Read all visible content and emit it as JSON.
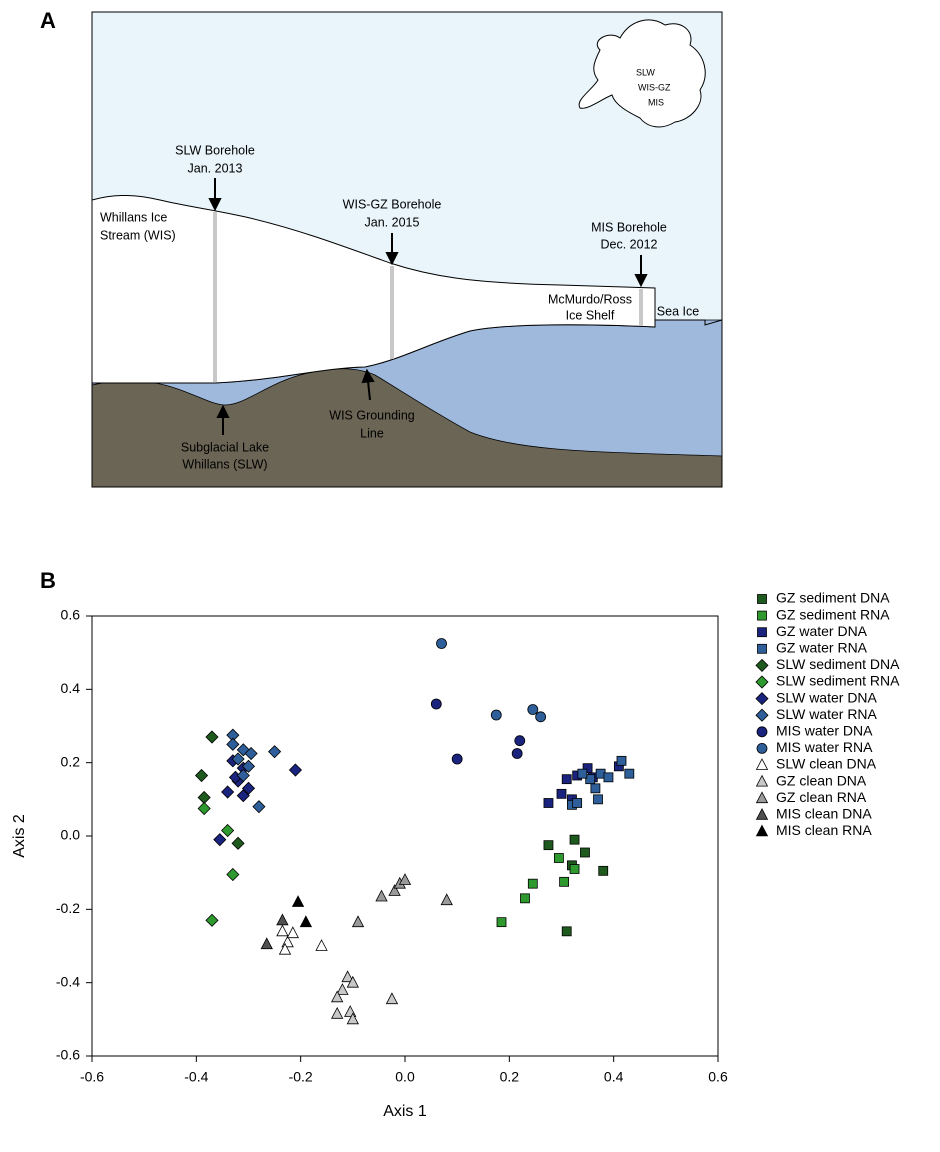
{
  "diagram": {
    "panel": "A",
    "slw_borehole": [
      "SLW Borehole",
      "Jan. 2013"
    ],
    "wis": [
      "Whillans Ice",
      "Stream (WIS)"
    ],
    "gz_borehole": [
      "WIS-GZ Borehole",
      "Jan. 2015"
    ],
    "mis_borehole": [
      "MIS Borehole",
      "Dec. 2012"
    ],
    "shelf": [
      "McMurdo/Ross",
      "Ice Shelf"
    ],
    "sea_ice": [
      "Sea Ice"
    ],
    "lake": [
      "Subglacial Lake",
      "Whillans (SLW)"
    ],
    "grounding": [
      "WIS Grounding",
      "Line"
    ],
    "map_labels": [
      "SLW",
      "WIS-GZ",
      "MIS"
    ]
  },
  "chart_data": {
    "type": "scatter",
    "panel": "B",
    "x_label": "Axis 1",
    "y_label": "Axis 2",
    "xlim": [
      -0.6,
      0.6
    ],
    "ylim": [
      -0.6,
      0.6
    ],
    "xticks": [
      -0.6,
      -0.4,
      -0.2,
      {
        "value": 0,
        "label": "0.0"
      },
      0.2,
      0.4,
      0.6
    ],
    "yticks": [
      -0.6,
      -0.4,
      -0.2,
      {
        "value": 0,
        "label": "0.0"
      },
      0.2,
      0.4,
      0.6
    ],
    "series": [
      {
        "name": "GZ sediment DNA",
        "color": "#1e5a1e",
        "marker": "square",
        "x": [
          0.325,
          0.345,
          0.275,
          0.38,
          0.31,
          0.32
        ],
        "y": [
          -0.01,
          -0.045,
          -0.025,
          -0.095,
          -0.26,
          -0.08
        ]
      },
      {
        "name": "GZ sediment RNA",
        "color": "#2e9a2e",
        "marker": "square",
        "x": [
          0.295,
          0.305,
          0.245,
          0.23,
          0.185,
          0.325
        ],
        "y": [
          -0.06,
          -0.125,
          -0.13,
          -0.17,
          -0.235,
          -0.09
        ]
      },
      {
        "name": "GZ water DNA",
        "color": "#1a237e",
        "marker": "square",
        "x": [
          0.275,
          0.31,
          0.33,
          0.35,
          0.36,
          0.41,
          0.3,
          0.32
        ],
        "y": [
          0.09,
          0.155,
          0.165,
          0.185,
          0.16,
          0.19,
          0.115,
          0.1
        ]
      },
      {
        "name": "GZ water RNA",
        "color": "#2e5f9a",
        "marker": "square",
        "x": [
          0.415,
          0.43,
          0.375,
          0.365,
          0.37,
          0.32,
          0.33,
          0.39,
          0.355,
          0.34
        ],
        "y": [
          0.205,
          0.17,
          0.17,
          0.13,
          0.1,
          0.085,
          0.09,
          0.16,
          0.155,
          0.17
        ]
      },
      {
        "name": "SLW sediment DNA",
        "color": "#1e5a1e",
        "marker": "diamond",
        "x": [
          -0.37,
          -0.39,
          -0.385,
          -0.32
        ],
        "y": [
          0.27,
          0.165,
          0.105,
          -0.02
        ]
      },
      {
        "name": "SLW sediment RNA",
        "color": "#2e9a2e",
        "marker": "diamond",
        "x": [
          -0.385,
          -0.34,
          -0.33,
          -0.37
        ],
        "y": [
          0.075,
          0.015,
          -0.105,
          -0.23
        ]
      },
      {
        "name": "SLW water DNA",
        "color": "#1a237e",
        "marker": "diamond",
        "x": [
          -0.33,
          -0.31,
          -0.32,
          -0.3,
          -0.34,
          -0.31,
          -0.355,
          -0.21,
          -0.325
        ],
        "y": [
          0.205,
          0.185,
          0.15,
          0.13,
          0.12,
          0.11,
          -0.01,
          0.18,
          0.16
        ]
      },
      {
        "name": "SLW water RNA",
        "color": "#2e5f9a",
        "marker": "diamond",
        "x": [
          -0.33,
          -0.33,
          -0.31,
          -0.295,
          -0.3,
          -0.32,
          -0.25,
          -0.28,
          -0.31
        ],
        "y": [
          0.275,
          0.25,
          0.235,
          0.225,
          0.19,
          0.21,
          0.23,
          0.08,
          0.165
        ]
      },
      {
        "name": "MIS water DNA",
        "color": "#1a237e",
        "marker": "circle",
        "x": [
          0.06,
          0.1,
          0.22,
          0.215
        ],
        "y": [
          0.36,
          0.21,
          0.26,
          0.225
        ]
      },
      {
        "name": "MIS water RNA",
        "color": "#2e5f9a",
        "marker": "circle",
        "x": [
          0.07,
          0.175,
          0.245,
          0.26
        ],
        "y": [
          0.525,
          0.33,
          0.345,
          0.325
        ]
      },
      {
        "name": "SLW clean DNA",
        "color": "#ffffff",
        "marker": "triangle",
        "x": [
          -0.235,
          -0.225,
          -0.23,
          -0.215,
          -0.16
        ],
        "y": [
          -0.26,
          -0.29,
          -0.31,
          -0.265,
          -0.3
        ]
      },
      {
        "name": "GZ clean DNA",
        "color": "#c8c8c8",
        "marker": "triangle",
        "x": [
          -0.11,
          -0.1,
          -0.12,
          -0.13,
          -0.13,
          -0.105,
          -0.1,
          -0.025
        ],
        "y": [
          -0.385,
          -0.4,
          -0.42,
          -0.44,
          -0.485,
          -0.48,
          -0.5,
          -0.445
        ]
      },
      {
        "name": "GZ clean RNA",
        "color": "#9a9a9a",
        "marker": "triangle",
        "x": [
          -0.09,
          -0.045,
          -0.02,
          -0.01,
          0.0,
          0.08
        ],
        "y": [
          -0.235,
          -0.165,
          -0.15,
          -0.13,
          -0.12,
          -0.175
        ]
      },
      {
        "name": "MIS clean DNA",
        "color": "#505050",
        "marker": "triangle",
        "x": [
          -0.265,
          -0.235
        ],
        "y": [
          -0.295,
          -0.23
        ]
      },
      {
        "name": "MIS clean RNA",
        "color": "#000000",
        "marker": "triangle",
        "x": [
          -0.205,
          -0.19
        ],
        "y": [
          -0.18,
          -0.235
        ]
      }
    ]
  }
}
